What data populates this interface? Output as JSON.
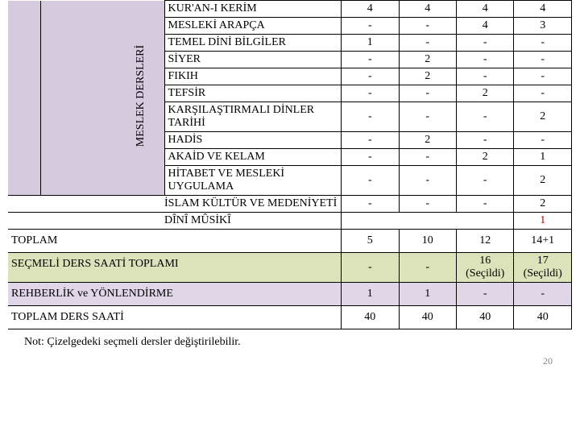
{
  "header_bg": "#d6cadf",
  "section_label": "MESLEK DERSLERİ",
  "courses": [
    {
      "name": "KUR'AN-I KERİM",
      "v": [
        "4",
        "4",
        "4",
        "4"
      ]
    },
    {
      "name": "MESLEKİ ARAPÇA",
      "v": [
        "-",
        "-",
        "4",
        "3"
      ]
    },
    {
      "name": "TEMEL DİNİ BİLGİLER",
      "v": [
        "1",
        "-",
        "-",
        "-"
      ]
    },
    {
      "name": "SİYER",
      "v": [
        "-",
        "2",
        "-",
        "-"
      ]
    },
    {
      "name": "FIKIH",
      "v": [
        "-",
        "2",
        "-",
        "-"
      ]
    },
    {
      "name": "TEFSİR",
      "v": [
        "-",
        "-",
        "2",
        "-"
      ]
    },
    {
      "name": "KARŞILAŞTIRMALI DİNLER TARİHİ",
      "v": [
        "-",
        "-",
        "-",
        "2"
      ],
      "wrap": true
    },
    {
      "name": "HADİS",
      "v": [
        "-",
        "2",
        "-",
        "-"
      ]
    },
    {
      "name": "AKAİD VE KELAM",
      "v": [
        "-",
        "-",
        "2",
        "1"
      ]
    },
    {
      "name": "HİTABET VE MESLEKİ UYGULAMA",
      "v": [
        "-",
        "-",
        "-",
        "2"
      ],
      "wrap": true
    }
  ],
  "extra_rows": [
    {
      "name": "İSLAM KÜLTÜR VE MEDENİYETİ",
      "v": [
        "-",
        "-",
        "-",
        "2"
      ]
    },
    {
      "name": "DÎNÎ MÛSİKÎ",
      "v": [
        "",
        "",
        "",
        "1"
      ],
      "merged": true,
      "red_last": true
    }
  ],
  "summary": [
    {
      "label": "TOPLAM",
      "v": [
        "5",
        "10",
        "12",
        "14+1"
      ],
      "cls": "toplam-row"
    },
    {
      "label": "SEÇMELİ DERS SAATİ TOPLAMI",
      "v": [
        "-",
        "-",
        "16\n(Seçildi)",
        "17\n(Seçildi)"
      ],
      "cls": "secmeli-row"
    },
    {
      "label": "REHBERLİK ve YÖNLENDİRME",
      "v": [
        "1",
        "1",
        "-",
        "-"
      ],
      "cls": "rehberlik-row"
    },
    {
      "label": "TOPLAM DERS SAATİ",
      "v": [
        "40",
        "40",
        "40",
        "40"
      ],
      "cls": "toplam-saat-row"
    }
  ],
  "note": "Not: Çizelgedeki seçmeli dersler değiştirilebilir.",
  "page_number": "20"
}
